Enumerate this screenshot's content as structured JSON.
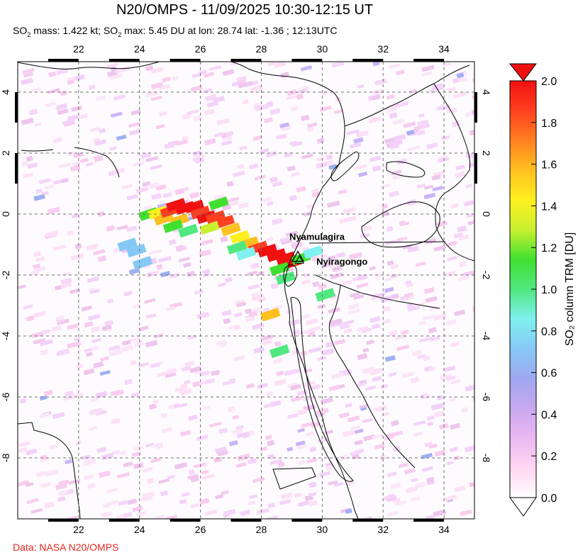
{
  "title": "N20/OMPS - 11/09/2025 10:30-12:15 UT",
  "subtitle": {
    "p1": "SO",
    "s1": "2",
    "p2": " mass: 1.422 kt; SO",
    "s2": "2",
    "p3": " max: 5.45 DU at lon: 28.74 lat: -1.36 ; 12:13UTC"
  },
  "credit": "Data: NASA N20/OMPS",
  "map": {
    "lon_range": [
      20,
      35
    ],
    "lat_range": [
      -10,
      5
    ],
    "lon_ticks": [
      "22",
      "24",
      "26",
      "28",
      "30",
      "32",
      "34"
    ],
    "lat_ticks": [
      "4",
      "2",
      "0",
      "-2",
      "-4",
      "-6",
      "-8"
    ],
    "grid": "dashed",
    "volcanoes": [
      {
        "name": "Nyamulagira",
        "lon": 29.2,
        "lat": -1.41
      },
      {
        "name": "Nyiragongo",
        "lon": 29.25,
        "lat": -1.52
      }
    ]
  },
  "colorbar": {
    "label": "SO₂ column TRM [DU]",
    "min": 0.0,
    "max": 2.0,
    "ticks": [
      "2.0",
      "1.8",
      "1.6",
      "1.4",
      "1.2",
      "1.0",
      "0.8",
      "0.6",
      "0.4",
      "0.2",
      "0.0"
    ],
    "colors": [
      "#ffffff",
      "#ffd6f2",
      "#ebb8f2",
      "#c8a8f0",
      "#9fa8f0",
      "#86c8f5",
      "#80f0f0",
      "#50e880",
      "#40e030",
      "#c8f030",
      "#fff020",
      "#ffc020",
      "#ff8020",
      "#ff4020",
      "#f01010"
    ]
  }
}
